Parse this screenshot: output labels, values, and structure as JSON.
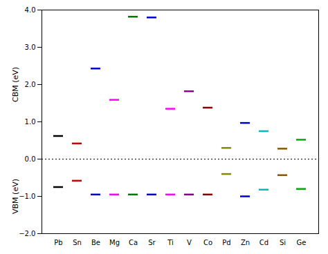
{
  "chart_data": {
    "type": "levels",
    "categories": [
      "Pb",
      "Sn",
      "Be",
      "Mg",
      "Ca",
      "Sr",
      "Ti",
      "V",
      "Co",
      "Pd",
      "Zn",
      "Cd",
      "Si",
      "Ge"
    ],
    "series": [
      {
        "name": "CBM (eV)",
        "values": [
          0.62,
          0.42,
          2.43,
          1.59,
          3.82,
          3.8,
          1.35,
          1.82,
          1.38,
          0.3,
          0.97,
          0.75,
          0.28,
          0.52
        ],
        "colors": [
          "#000000",
          "#cc0000",
          "#0000cc",
          "#ff00ff",
          "#007700",
          "#0000cc",
          "#ff00ff",
          "#880088",
          "#880000",
          "#888800",
          "#0000cc",
          "#00bbbb",
          "#885500",
          "#00aa00"
        ]
      },
      {
        "name": "VBM (eV)",
        "values": [
          -0.75,
          -0.58,
          -0.95,
          -0.95,
          -0.95,
          -0.95,
          -0.95,
          -0.95,
          -0.95,
          -0.4,
          -1.0,
          -0.82,
          -0.43,
          -0.8
        ],
        "colors": [
          "#000000",
          "#cc0000",
          "#0000cc",
          "#ff00ff",
          "#007700",
          "#0000cc",
          "#ff00ff",
          "#880088",
          "#880000",
          "#888800",
          "#0000cc",
          "#00bbbb",
          "#885500",
          "#00aa00"
        ]
      }
    ],
    "baseline": 0,
    "ylim": [
      -2.0,
      4.0
    ],
    "yticks": [
      -2,
      -1,
      0,
      1,
      2,
      3,
      4
    ],
    "grid": false
  }
}
